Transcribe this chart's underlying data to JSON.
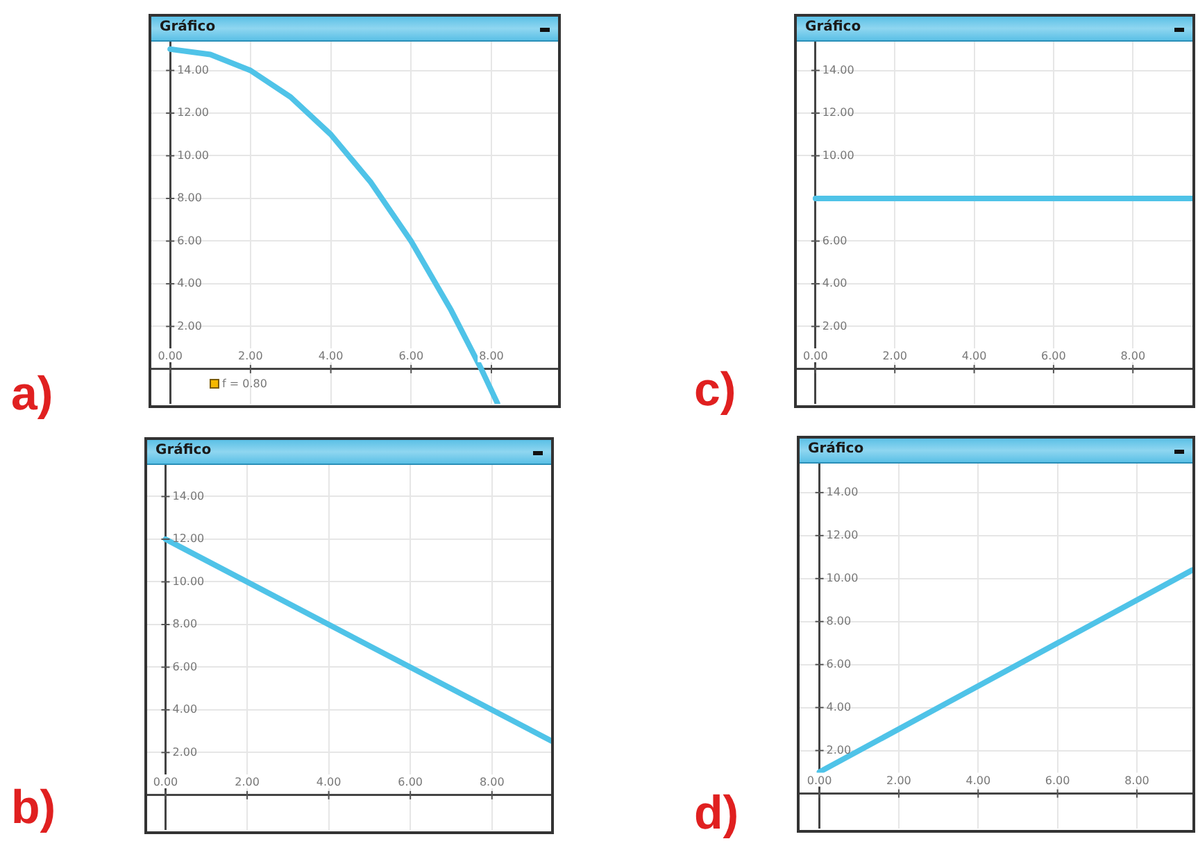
{
  "chart_data": [
    {
      "type": "line",
      "title": "Gráfico",
      "annotations": [
        "a)",
        "f = 0.80"
      ],
      "x": [
        0,
        1,
        2,
        3,
        4,
        5,
        6,
        7,
        7.75,
        8.15
      ],
      "values": [
        15,
        14.75,
        14,
        12.75,
        11,
        8.75,
        6,
        2.75,
        0,
        -1.6
      ],
      "color": "#4fc3e8",
      "xlim": [
        -0.47,
        9.66
      ],
      "ylim": [
        -1.63,
        15.35
      ],
      "xticks": [
        {
          "value": 0,
          "label": "0.00"
        },
        {
          "value": 2,
          "label": "2.00"
        },
        {
          "value": 4,
          "label": "4.00"
        },
        {
          "value": 6,
          "label": "6.00"
        },
        {
          "value": 8,
          "label": "8.00"
        }
      ],
      "yticks": [
        {
          "value": 2,
          "label": "2.00"
        },
        {
          "value": 4,
          "label": "4.00"
        },
        {
          "value": 6,
          "label": "6.00"
        },
        {
          "value": 8,
          "label": "8.00"
        },
        {
          "value": 10,
          "label": "10.00"
        },
        {
          "value": 12,
          "label": "12.00"
        },
        {
          "value": 14,
          "label": "14.00"
        }
      ],
      "grid": true,
      "legend": false,
      "marker": "none",
      "line_style": "solid"
    },
    {
      "type": "line",
      "title": "Gráfico",
      "annotations": [
        "c)"
      ],
      "x": [
        0,
        9.5
      ],
      "values": [
        8,
        8
      ],
      "color": "#4fc3e8",
      "xlim": [
        -0.47,
        9.5
      ],
      "ylim": [
        -1.63,
        15.35
      ],
      "xticks": [
        {
          "value": 0,
          "label": "0.00"
        },
        {
          "value": 2,
          "label": "2.00"
        },
        {
          "value": 4,
          "label": "4.00"
        },
        {
          "value": 6,
          "label": "6.00"
        },
        {
          "value": 8,
          "label": "8.00"
        }
      ],
      "yticks": [
        {
          "value": 2,
          "label": "2.00"
        },
        {
          "value": 4,
          "label": "4.00"
        },
        {
          "value": 6,
          "label": "6.00"
        },
        {
          "value": 10,
          "label": "10.00"
        },
        {
          "value": 12,
          "label": "12.00"
        },
        {
          "value": 14,
          "label": "14.00"
        }
      ],
      "grid": true,
      "legend": false,
      "marker": "none",
      "line_style": "solid"
    },
    {
      "type": "line",
      "title": "Gráfico",
      "annotations": [
        "b)"
      ],
      "x": [
        0,
        9.45
      ],
      "values": [
        12,
        2.55
      ],
      "color": "#4fc3e8",
      "xlim": [
        -0.45,
        9.45
      ],
      "ylim": [
        -1.63,
        15.48
      ],
      "xticks": [
        {
          "value": 0,
          "label": "0.00"
        },
        {
          "value": 2,
          "label": "2.00"
        },
        {
          "value": 4,
          "label": "4.00"
        },
        {
          "value": 6,
          "label": "6.00"
        },
        {
          "value": 8,
          "label": "8.00"
        }
      ],
      "yticks": [
        {
          "value": 2,
          "label": "2.00"
        },
        {
          "value": 4,
          "label": "4.00"
        },
        {
          "value": 6,
          "label": "6.00"
        },
        {
          "value": 8,
          "label": "8.00"
        },
        {
          "value": 10,
          "label": "10.00"
        },
        {
          "value": 12,
          "label": "12.00"
        },
        {
          "value": 14,
          "label": "14.00"
        }
      ],
      "grid": true,
      "legend": false,
      "marker": "none",
      "line_style": "solid"
    },
    {
      "type": "line",
      "title": "Gráfico",
      "annotations": [
        "d)"
      ],
      "x": [
        0,
        9.4
      ],
      "values": [
        1,
        10.4
      ],
      "color": "#4fc3e8",
      "xlim": [
        -0.5,
        9.4
      ],
      "ylim": [
        -1.63,
        15.35
      ],
      "xticks": [
        {
          "value": 0,
          "label": "0.00"
        },
        {
          "value": 2,
          "label": "2.00"
        },
        {
          "value": 4,
          "label": "4.00"
        },
        {
          "value": 6,
          "label": "6.00"
        },
        {
          "value": 8,
          "label": "8.00"
        }
      ],
      "yticks": [
        {
          "value": 2,
          "label": "2.00"
        },
        {
          "value": 4,
          "label": "4.00"
        },
        {
          "value": 6,
          "label": "6.00"
        },
        {
          "value": 8,
          "label": "8.00"
        },
        {
          "value": 10,
          "label": "10.00"
        },
        {
          "value": 12,
          "label": "12.00"
        },
        {
          "value": 14,
          "label": "14.00"
        }
      ],
      "grid": true,
      "legend": false,
      "marker": "none",
      "line_style": "solid"
    }
  ]
}
